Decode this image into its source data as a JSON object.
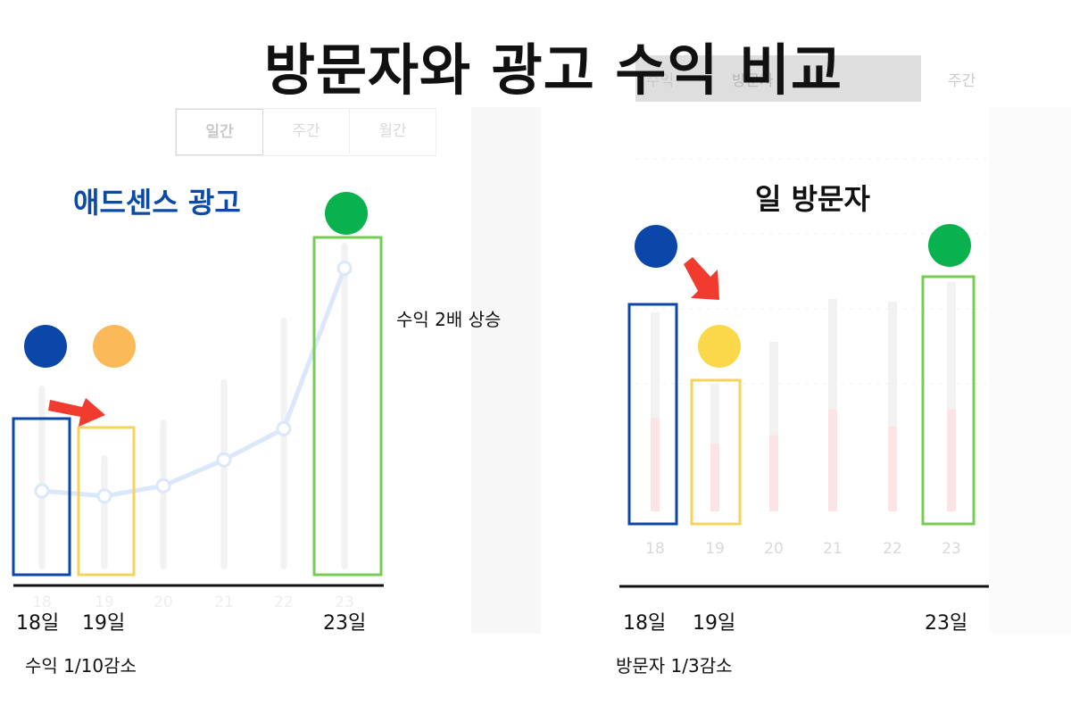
{
  "title": "방문자와 광고 수익 비교",
  "background_tabs": {
    "left": [
      "일간",
      "주간",
      "월간"
    ],
    "right_top": [
      "수익",
      "방문자",
      "",
      "주간"
    ]
  },
  "chart_data": [
    {
      "type": "line",
      "title": "애드센스 광고",
      "categories": [
        "18",
        "19",
        "20",
        "21",
        "22",
        "23"
      ],
      "series": [
        {
          "values": [
            1.0,
            0.9,
            1.1,
            1.6,
            2.2,
            5.3
          ]
        }
      ],
      "highlight_labels": [
        "18일",
        "19일",
        "23일"
      ],
      "annotations": {
        "increase": "수익 2배 상승",
        "decrease": "수익 1/10감소"
      },
      "colors": {
        "line": "#dbe7fb",
        "day18": "#0a47a8",
        "day19": "#fbb95a",
        "day23": "#0ab24f",
        "box18": "#0a47a8",
        "box19": "#f6d35c",
        "box23": "#77cc55"
      }
    },
    {
      "type": "bar",
      "title": "일 방문자",
      "categories": [
        "18",
        "19",
        "20",
        "21",
        "22",
        "23"
      ],
      "series": [
        {
          "values": [
            11,
            8,
            9,
            12,
            10,
            12
          ]
        }
      ],
      "highlight_labels": [
        "18일",
        "19일",
        "23일"
      ],
      "annotations": {
        "decrease": "방문자 1/3감소"
      },
      "colors": {
        "day18": "#0a47a8",
        "day19": "#fbd84a",
        "day23": "#0ab24f",
        "box18": "#0a47a8",
        "box19": "#f6d35c",
        "box23": "#77cc55"
      }
    }
  ]
}
